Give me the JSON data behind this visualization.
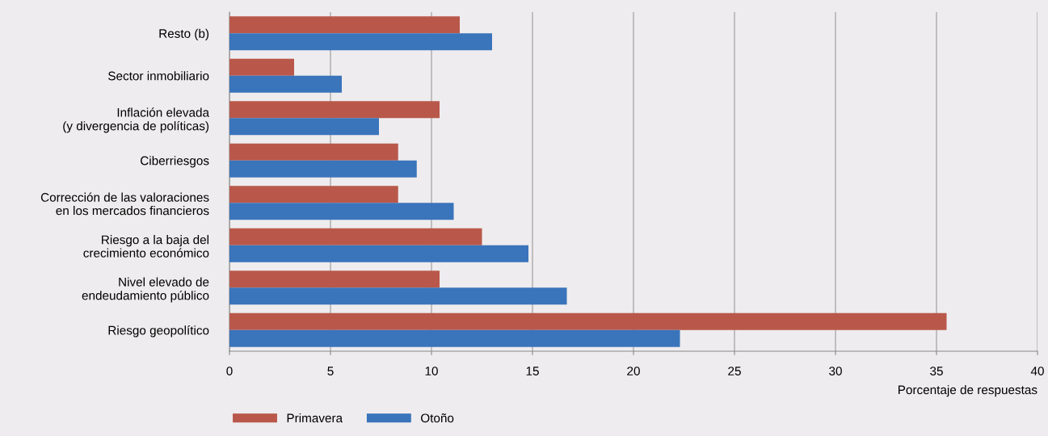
{
  "chart_data": {
    "type": "bar",
    "orientation": "horizontal",
    "xlabel": "Porcentaje de respuestas",
    "categories": [
      "Resto (b)",
      "Sector inmobiliario",
      "Inflación elevada\n(y divergencia de políticas)",
      "Ciberriesgos",
      "Corrección de las valoraciones\nen los mercados financieros",
      "Riesgo a la baja del\ncrecimiento económico",
      "Nivel elevado de\nendeudamiento público",
      "Riesgo geopolítico"
    ],
    "series": [
      {
        "name": "Primavera",
        "color": "#b9584a",
        "values": [
          11.4,
          3.2,
          10.4,
          8.35,
          8.35,
          12.5,
          10.4,
          35.5
        ]
      },
      {
        "name": "Otoño",
        "color": "#3a74bb",
        "values": [
          13.0,
          5.56,
          7.4,
          9.27,
          11.1,
          14.8,
          16.7,
          22.3
        ]
      }
    ],
    "xlim": [
      0,
      40
    ],
    "xticks": [
      0,
      5,
      10,
      15,
      20,
      25,
      30,
      35,
      40
    ],
    "grid": "x",
    "legend": "bottom left"
  }
}
